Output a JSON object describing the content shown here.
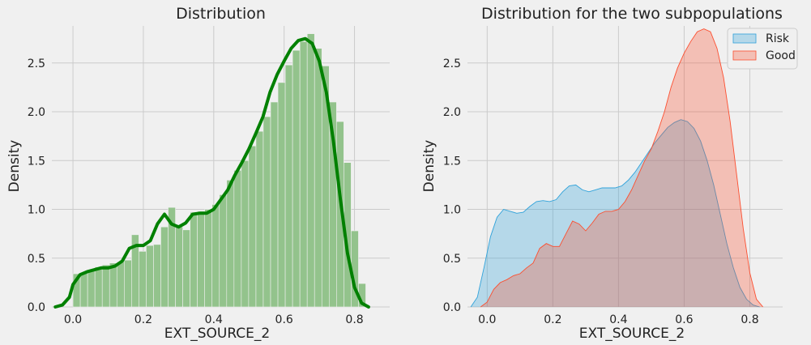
{
  "chart_data": [
    {
      "type": "histogram+kde",
      "title": "Distribution",
      "xlabel": "EXT_SOURCE_2",
      "ylabel": "Density",
      "xlim": [
        -0.06,
        0.9
      ],
      "ylim": [
        0,
        2.88
      ],
      "xticks": [
        "0.0",
        "0.2",
        "0.4",
        "0.6",
        "0.8"
      ],
      "yticks": [
        "0.0",
        "0.5",
        "1.0",
        "1.5",
        "2.0",
        "2.5"
      ],
      "grid": true,
      "colors": {
        "hist": "#93c38c",
        "hist_edge": "#f0f0f0",
        "kde": "#008000"
      },
      "hist": {
        "bin_width": 0.0208,
        "bin_start": 0.0,
        "values": [
          0.34,
          0.35,
          0.38,
          0.41,
          0.43,
          0.45,
          0.46,
          0.48,
          0.74,
          0.57,
          0.63,
          0.64,
          0.82,
          1.02,
          0.82,
          0.79,
          0.97,
          0.98,
          1.0,
          1.05,
          1.15,
          1.3,
          1.4,
          1.5,
          1.65,
          1.8,
          1.95,
          2.1,
          2.3,
          2.48,
          2.63,
          2.72,
          2.8,
          2.65,
          2.47,
          2.1,
          1.9,
          1.48,
          0.78,
          0.24
        ]
      },
      "kde": {
        "x": [
          -0.05,
          -0.03,
          -0.01,
          0.0,
          0.02,
          0.04,
          0.06,
          0.08,
          0.1,
          0.12,
          0.14,
          0.16,
          0.18,
          0.2,
          0.22,
          0.24,
          0.26,
          0.28,
          0.3,
          0.32,
          0.34,
          0.36,
          0.38,
          0.4,
          0.42,
          0.44,
          0.46,
          0.48,
          0.5,
          0.52,
          0.54,
          0.56,
          0.58,
          0.6,
          0.62,
          0.64,
          0.66,
          0.68,
          0.7,
          0.72,
          0.74,
          0.76,
          0.78,
          0.8,
          0.82,
          0.84
        ],
        "y": [
          0.0,
          0.02,
          0.1,
          0.23,
          0.33,
          0.36,
          0.38,
          0.4,
          0.4,
          0.42,
          0.47,
          0.6,
          0.63,
          0.63,
          0.68,
          0.85,
          0.95,
          0.85,
          0.82,
          0.86,
          0.95,
          0.96,
          0.96,
          1.0,
          1.1,
          1.2,
          1.35,
          1.48,
          1.62,
          1.78,
          1.95,
          2.2,
          2.38,
          2.52,
          2.65,
          2.73,
          2.75,
          2.7,
          2.52,
          2.2,
          1.7,
          1.1,
          0.55,
          0.2,
          0.04,
          0.0
        ]
      }
    },
    {
      "type": "kde",
      "title": "Distribution for the two subpopulations",
      "xlabel": "EXT_SOURCE_2",
      "ylabel": "Density",
      "xlim": [
        -0.06,
        0.9
      ],
      "ylim": [
        0,
        2.88
      ],
      "xticks": [
        "0.0",
        "0.2",
        "0.4",
        "0.6",
        "0.8"
      ],
      "yticks": [
        "0.0",
        "0.5",
        "1.0",
        "1.5",
        "2.0",
        "2.5"
      ],
      "grid": true,
      "legend": "top-right",
      "series": [
        {
          "name": "Risk",
          "color": "#30a2da",
          "x": [
            -0.05,
            -0.03,
            -0.01,
            0.01,
            0.03,
            0.05,
            0.07,
            0.09,
            0.11,
            0.13,
            0.15,
            0.17,
            0.19,
            0.21,
            0.23,
            0.25,
            0.27,
            0.29,
            0.31,
            0.33,
            0.35,
            0.37,
            0.39,
            0.41,
            0.43,
            0.45,
            0.47,
            0.49,
            0.51,
            0.53,
            0.55,
            0.57,
            0.59,
            0.61,
            0.63,
            0.65,
            0.67,
            0.69,
            0.71,
            0.73,
            0.75,
            0.77,
            0.79,
            0.81,
            0.83
          ],
          "y": [
            0.0,
            0.1,
            0.4,
            0.72,
            0.92,
            1.0,
            0.98,
            0.96,
            0.97,
            1.03,
            1.08,
            1.09,
            1.08,
            1.1,
            1.18,
            1.24,
            1.25,
            1.2,
            1.18,
            1.2,
            1.22,
            1.22,
            1.22,
            1.24,
            1.3,
            1.38,
            1.48,
            1.58,
            1.68,
            1.76,
            1.84,
            1.89,
            1.92,
            1.9,
            1.83,
            1.7,
            1.5,
            1.25,
            0.95,
            0.65,
            0.4,
            0.2,
            0.08,
            0.02,
            0.0
          ]
        },
        {
          "name": "Good",
          "color": "#fc4f30",
          "x": [
            -0.02,
            0.0,
            0.02,
            0.04,
            0.06,
            0.08,
            0.1,
            0.12,
            0.14,
            0.16,
            0.18,
            0.2,
            0.22,
            0.24,
            0.26,
            0.28,
            0.3,
            0.32,
            0.34,
            0.36,
            0.38,
            0.4,
            0.42,
            0.44,
            0.46,
            0.48,
            0.5,
            0.52,
            0.54,
            0.56,
            0.58,
            0.6,
            0.62,
            0.64,
            0.66,
            0.68,
            0.7,
            0.72,
            0.74,
            0.76,
            0.78,
            0.8,
            0.82,
            0.84
          ],
          "y": [
            0.0,
            0.05,
            0.18,
            0.25,
            0.28,
            0.32,
            0.34,
            0.4,
            0.45,
            0.6,
            0.65,
            0.62,
            0.62,
            0.75,
            0.88,
            0.85,
            0.78,
            0.86,
            0.95,
            0.98,
            0.98,
            1.0,
            1.08,
            1.2,
            1.35,
            1.5,
            1.62,
            1.8,
            2.0,
            2.25,
            2.45,
            2.6,
            2.72,
            2.82,
            2.85,
            2.82,
            2.65,
            2.35,
            1.9,
            1.35,
            0.8,
            0.35,
            0.08,
            0.0
          ]
        }
      ]
    }
  ]
}
